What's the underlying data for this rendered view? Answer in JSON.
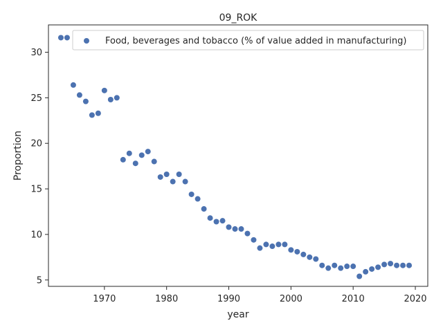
{
  "chart_data": {
    "type": "scatter",
    "title": "09_ROK",
    "xlabel": "year",
    "ylabel": "Proportion",
    "xlim": [
      1961,
      2022
    ],
    "ylim": [
      4.3,
      33
    ],
    "xticks": [
      1970,
      1980,
      1990,
      2000,
      2010,
      2020
    ],
    "yticks": [
      5,
      10,
      15,
      20,
      25,
      30
    ],
    "grid": false,
    "legend_position": "top-right",
    "series": [
      {
        "name": "Food, beverages and tobacco (% of value added in manufacturing)",
        "color": "#4c72b0",
        "x": [
          1963,
          1964,
          1965,
          1966,
          1967,
          1968,
          1969,
          1970,
          1971,
          1972,
          1973,
          1974,
          1975,
          1976,
          1977,
          1978,
          1979,
          1980,
          1981,
          1982,
          1983,
          1984,
          1985,
          1986,
          1987,
          1988,
          1989,
          1990,
          1991,
          1992,
          1993,
          1994,
          1995,
          1996,
          1997,
          1998,
          1999,
          2000,
          2001,
          2002,
          2003,
          2004,
          2005,
          2006,
          2007,
          2008,
          2009,
          2010,
          2011,
          2012,
          2013,
          2014,
          2015,
          2016,
          2017,
          2018,
          2019
        ],
        "y": [
          31.6,
          31.6,
          26.4,
          25.3,
          24.6,
          23.1,
          23.3,
          25.8,
          24.8,
          25.0,
          18.2,
          18.9,
          17.8,
          18.7,
          19.1,
          18.0,
          16.3,
          16.6,
          15.8,
          16.6,
          15.8,
          14.4,
          13.9,
          12.8,
          11.8,
          11.4,
          11.5,
          10.8,
          10.6,
          10.6,
          10.1,
          9.4,
          8.5,
          8.9,
          8.7,
          8.9,
          8.9,
          8.3,
          8.1,
          7.8,
          7.5,
          7.3,
          6.6,
          6.3,
          6.6,
          6.3,
          6.5,
          6.5,
          5.4,
          5.9,
          6.2,
          6.4,
          6.7,
          6.8,
          6.6,
          6.6,
          6.6
        ]
      }
    ]
  }
}
